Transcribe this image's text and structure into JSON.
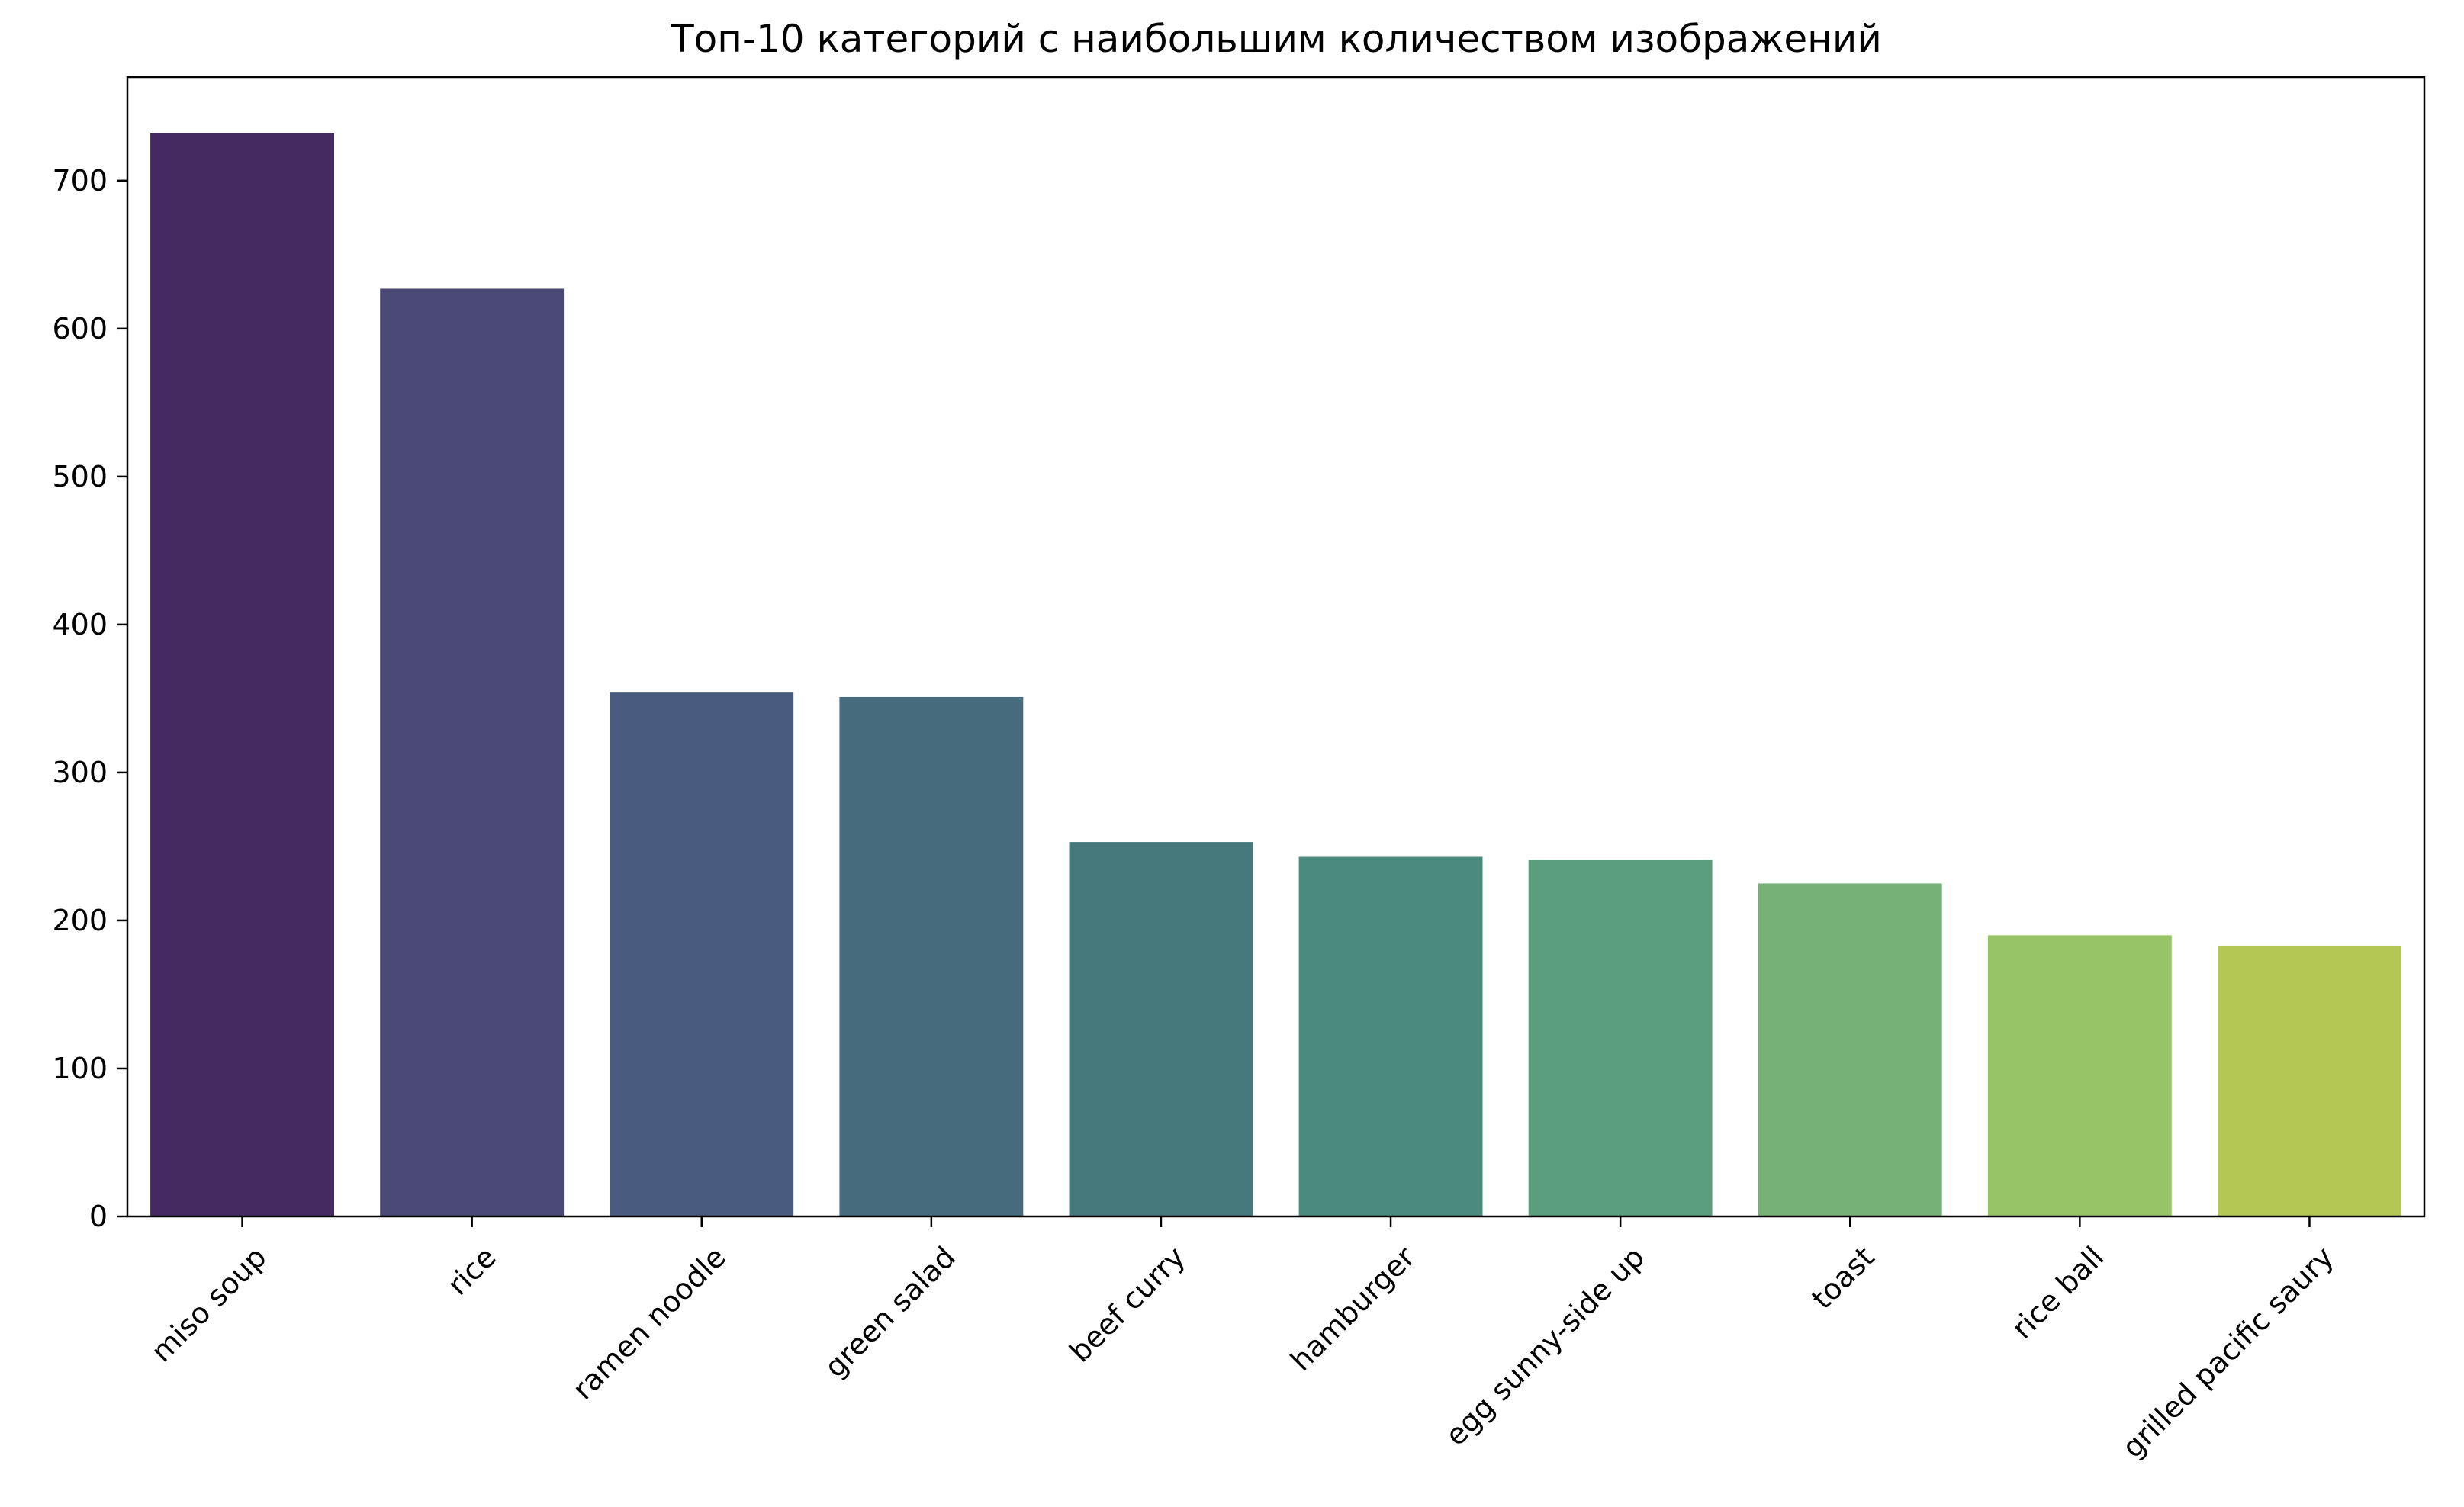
{
  "chart_data": {
    "type": "bar",
    "title": "Топ-10 категорий с наибольшим количеством изображений",
    "xlabel": "",
    "ylabel": "",
    "categories": [
      "miso soup",
      "rice",
      "ramen noodle",
      "green salad",
      "beef curry",
      "hamburger",
      "egg sunny-side up",
      "toast",
      "rice ball",
      "grilled pacific saury"
    ],
    "values": [
      732,
      627,
      354,
      351,
      253,
      243,
      241,
      225,
      190,
      183
    ],
    "ylim": [
      0,
      770
    ],
    "yticks": [
      0,
      100,
      200,
      300,
      400,
      500,
      600,
      700
    ],
    "colors": [
      "#452a62",
      "#4a4976",
      "#4a5b80",
      "#466b7d",
      "#45797c",
      "#4a8b7d",
      "#5b9e7e",
      "#76b278",
      "#97c467",
      "#b4c654"
    ],
    "grid": false,
    "legend": "none",
    "xtick_rotation_deg": 45
  }
}
